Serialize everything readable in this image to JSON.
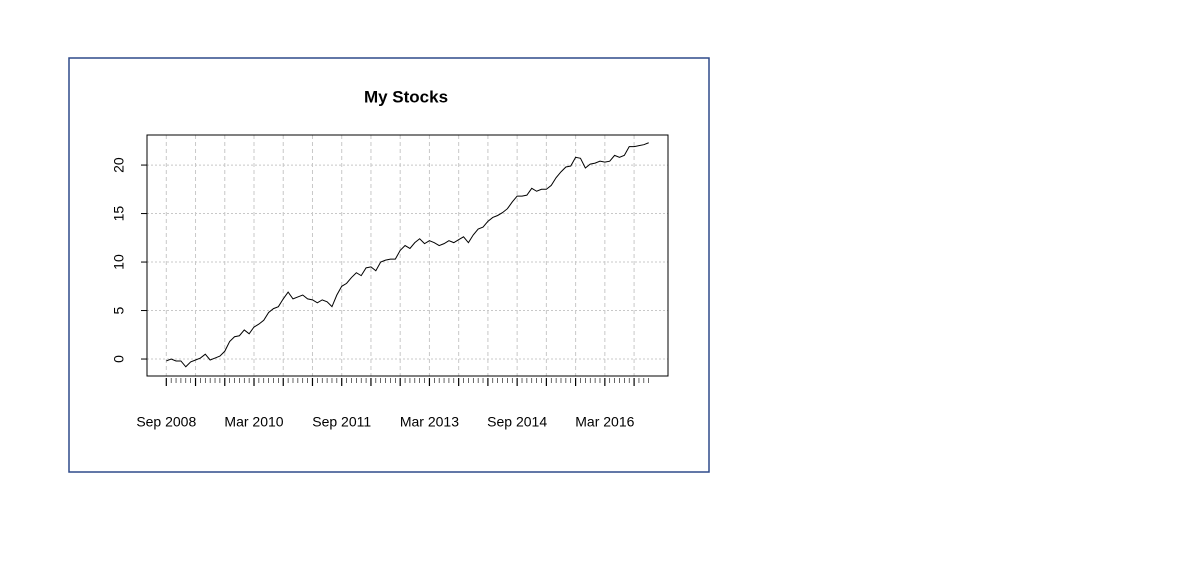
{
  "chart_data": {
    "type": "line",
    "title": "My Stocks",
    "categories": [
      "Sep 2008",
      null,
      null,
      null,
      null,
      null,
      null,
      null,
      null,
      null,
      null,
      null,
      null,
      null,
      null,
      null,
      null,
      null,
      "Mar 2010",
      null,
      null,
      null,
      null,
      null,
      null,
      null,
      null,
      null,
      null,
      null,
      null,
      null,
      null,
      null,
      null,
      null,
      "Sep 2011",
      null,
      null,
      null,
      null,
      null,
      null,
      null,
      null,
      null,
      null,
      null,
      null,
      null,
      null,
      null,
      null,
      null,
      "Mar 2013",
      null,
      null,
      null,
      null,
      null,
      null,
      null,
      null,
      null,
      null,
      null,
      null,
      null,
      null,
      null,
      null,
      null,
      "Sep 2014",
      null,
      null,
      null,
      null,
      null,
      null,
      null,
      null,
      null,
      null,
      null,
      null,
      null,
      null,
      null,
      null,
      null,
      "Mar 2016",
      null,
      null,
      null,
      null,
      null,
      null,
      null,
      null,
      null
    ],
    "values": [
      -0.2,
      0.0,
      -0.2,
      -0.2,
      -0.8,
      -0.3,
      -0.1,
      0.1,
      0.5,
      -0.1,
      0.1,
      0.3,
      0.8,
      1.8,
      2.3,
      2.4,
      3.0,
      2.6,
      3.3,
      3.6,
      4.0,
      4.8,
      5.2,
      5.4,
      6.2,
      6.9,
      6.2,
      6.4,
      6.6,
      6.2,
      6.1,
      5.8,
      6.1,
      5.9,
      5.4,
      6.6,
      7.5,
      7.8,
      8.4,
      8.9,
      8.6,
      9.4,
      9.5,
      9.1,
      10.0,
      10.2,
      10.3,
      10.3,
      11.2,
      11.7,
      11.4,
      12.0,
      12.4,
      11.9,
      12.2,
      12.0,
      11.7,
      11.9,
      12.2,
      12.0,
      12.3,
      12.6,
      12.0,
      12.8,
      13.4,
      13.6,
      14.2,
      14.6,
      14.8,
      15.1,
      15.5,
      16.2,
      16.8,
      16.8,
      16.9,
      17.6,
      17.3,
      17.5,
      17.5,
      17.9,
      18.7,
      19.3,
      19.8,
      19.9,
      20.8,
      20.7,
      19.7,
      20.1,
      20.2,
      20.4,
      20.3,
      20.4,
      21.0,
      20.8,
      21.0,
      21.9,
      21.9,
      22.0,
      22.1,
      22.3
    ],
    "color": "#000000",
    "ylim": [
      -1.75,
      23.1
    ],
    "yticks": [
      0,
      5,
      10,
      15,
      20
    ],
    "grid": true
  }
}
